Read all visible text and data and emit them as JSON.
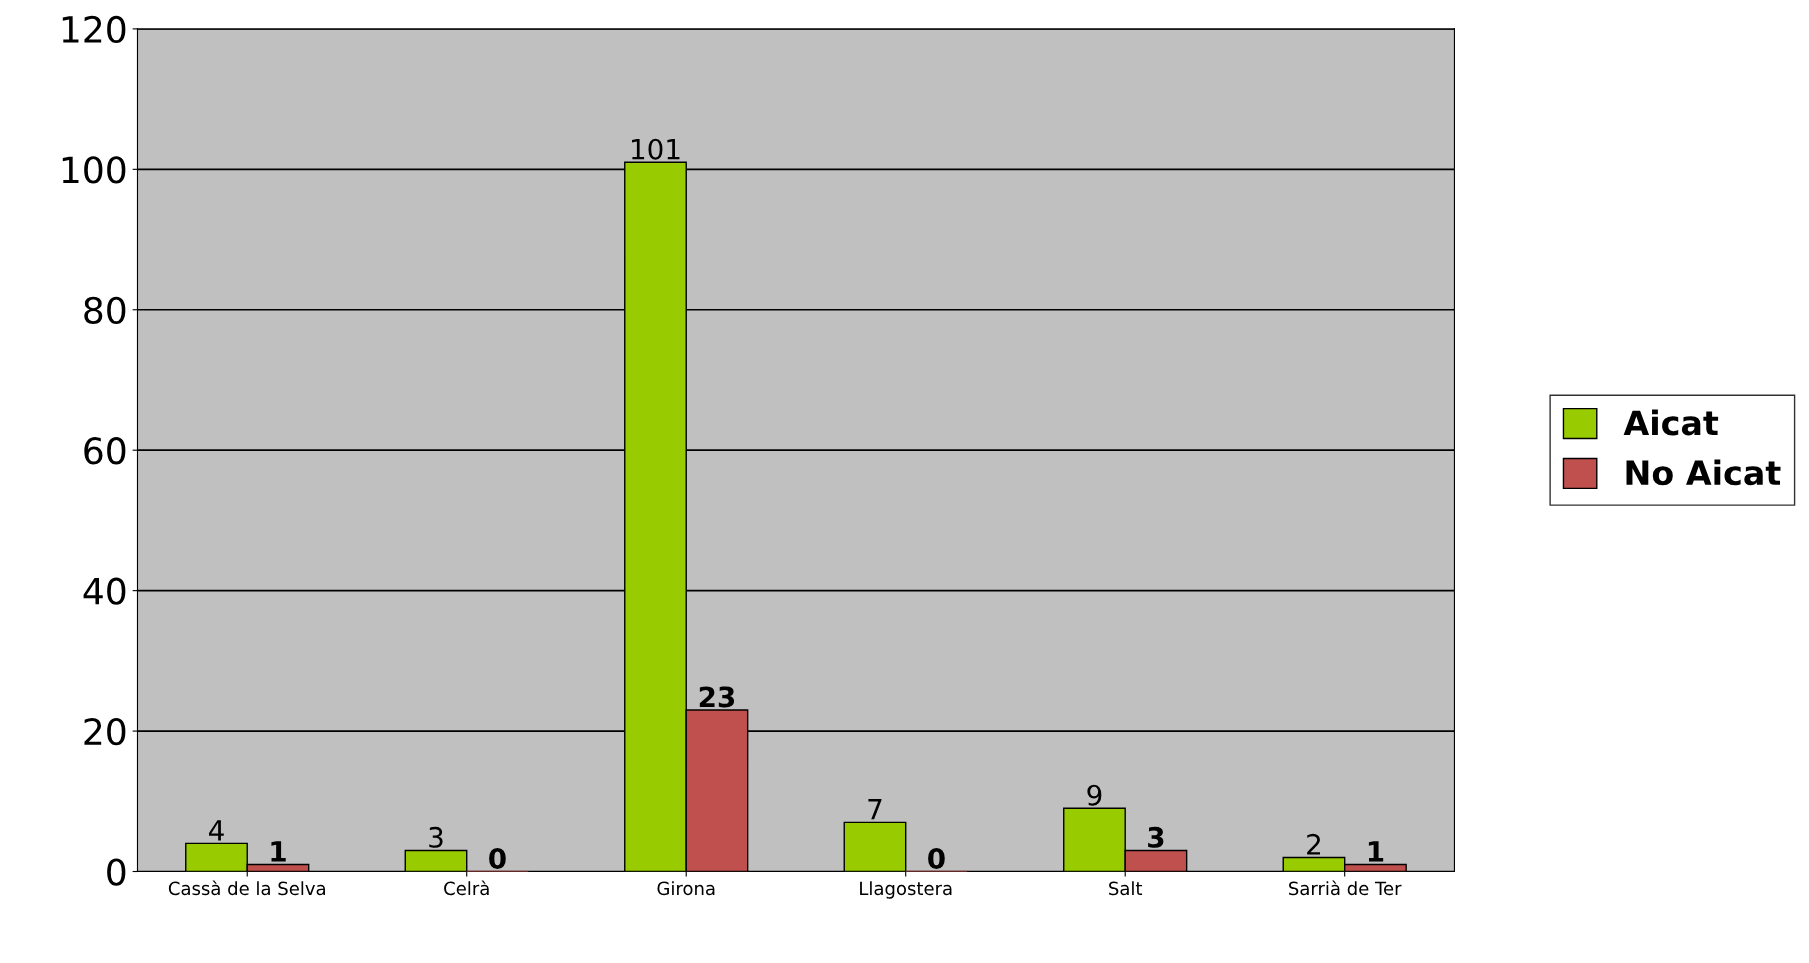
{
  "chart_data": {
    "type": "bar",
    "categories": [
      "Cassà de la Selva",
      "Celrà",
      "Girona",
      "Llagostera",
      "Salt",
      "Sarrià de Ter"
    ],
    "series": [
      {
        "name": "Aicat",
        "color": "#99cc00",
        "values": [
          4,
          3,
          101,
          7,
          9,
          2
        ]
      },
      {
        "name": "No Aicat",
        "color": "#c0504d",
        "values": [
          1,
          0,
          23,
          0,
          3,
          1
        ]
      }
    ],
    "ylim": [
      0,
      120
    ],
    "yticks": [
      0,
      20,
      40,
      60,
      80,
      100,
      120
    ],
    "grid": "y",
    "legend": "right",
    "data_labels": true
  }
}
